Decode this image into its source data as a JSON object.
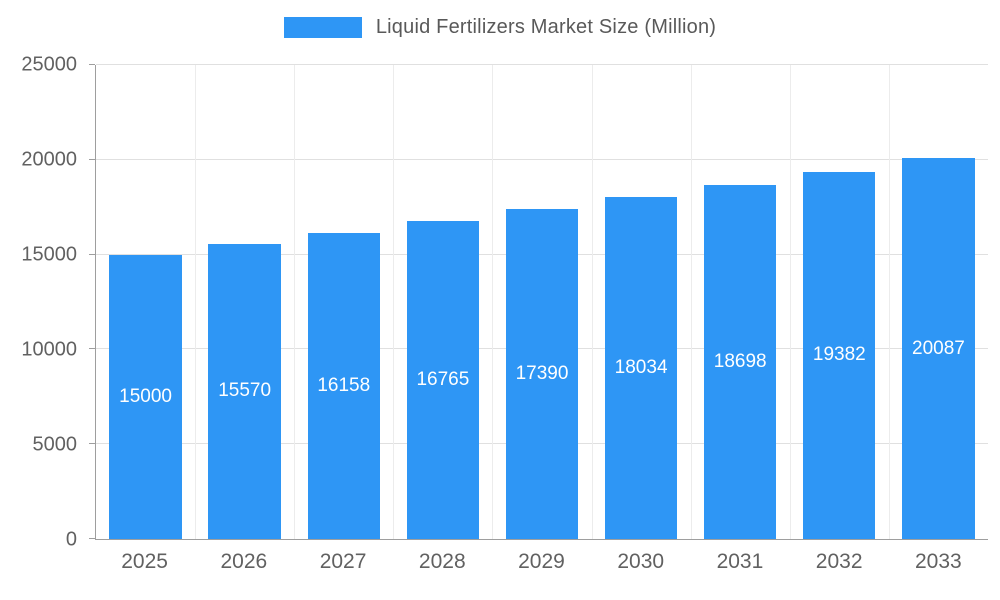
{
  "chart_data": {
    "type": "bar",
    "title": "Liquid Fertilizers Market Size (Million)",
    "categories": [
      "2025",
      "2026",
      "2027",
      "2028",
      "2029",
      "2030",
      "2031",
      "2032",
      "2033"
    ],
    "values": [
      15000,
      15570,
      16158,
      16765,
      17390,
      18034,
      18698,
      19382,
      20087
    ],
    "xlabel": "",
    "ylabel": "",
    "ylim": [
      0,
      25000
    ],
    "yticks": [
      0,
      5000,
      10000,
      15000,
      20000,
      25000
    ],
    "grid": true,
    "legend_position": "top",
    "colors": {
      "bar": "#2E96F5",
      "value_label": "#ffffff",
      "axis_line": "#9e9e9e",
      "gridline": "#e0e0e0",
      "tick_label": "#616161",
      "legend_text": "#595959",
      "background": "#ffffff"
    }
  }
}
